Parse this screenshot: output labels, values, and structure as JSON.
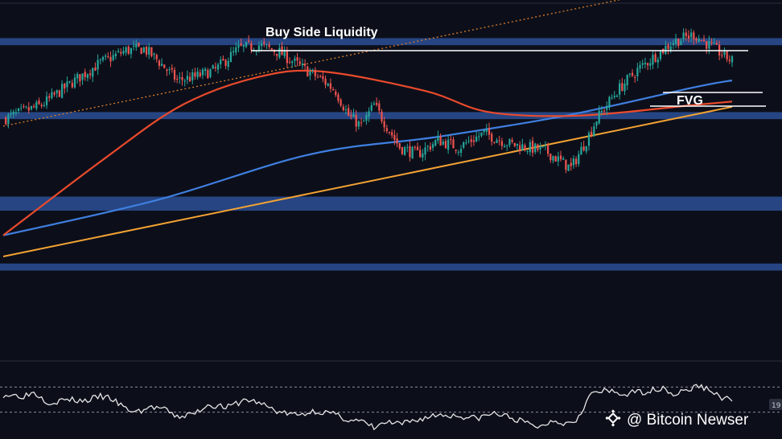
{
  "chart_data": {
    "type": "candlestick",
    "title": "",
    "xlabel": "",
    "ylabel": "",
    "ylim": [
      0,
      1000
    ],
    "grid": false,
    "annotations": {
      "buy_side_liquidity": "Buy Side Liquidity",
      "fvg": "FVG"
    },
    "zones": [
      {
        "name": "top-zone",
        "from": 890,
        "to": 910
      },
      {
        "name": "mid-zone",
        "from": 680,
        "to": 700
      },
      {
        "name": "lower-zone",
        "from": 420,
        "to": 460
      },
      {
        "name": "bottom-zone",
        "from": 250,
        "to": 270
      }
    ],
    "close_path": [
      [
        0,
        680
      ],
      [
        15,
        720
      ],
      [
        28,
        790
      ],
      [
        38,
        840
      ],
      [
        48,
        875
      ],
      [
        55,
        880
      ],
      [
        60,
        850
      ],
      [
        68,
        790
      ],
      [
        75,
        800
      ],
      [
        83,
        820
      ],
      [
        92,
        880
      ],
      [
        100,
        890
      ],
      [
        108,
        870
      ],
      [
        116,
        830
      ],
      [
        125,
        790
      ],
      [
        130,
        760
      ],
      [
        135,
        690
      ],
      [
        140,
        660
      ],
      [
        145,
        720
      ],
      [
        150,
        660
      ],
      [
        155,
        600
      ],
      [
        162,
        580
      ],
      [
        170,
        620
      ],
      [
        178,
        600
      ],
      [
        188,
        640
      ],
      [
        198,
        610
      ],
      [
        205,
        600
      ],
      [
        212,
        590
      ],
      [
        218,
        560
      ],
      [
        222,
        540
      ],
      [
        228,
        620
      ],
      [
        232,
        680
      ],
      [
        240,
        760
      ],
      [
        248,
        820
      ],
      [
        255,
        860
      ],
      [
        262,
        900
      ],
      [
        270,
        920
      ],
      [
        278,
        880
      ],
      [
        285,
        845
      ]
    ],
    "red_ma": [
      [
        0,
        350
      ],
      [
        40,
        570
      ],
      [
        70,
        720
      ],
      [
        100,
        800
      ],
      [
        125,
        815
      ],
      [
        165,
        760
      ],
      [
        190,
        700
      ],
      [
        225,
        690
      ],
      [
        270,
        720
      ],
      [
        285,
        730
      ]
    ],
    "blue_ma": [
      [
        0,
        350
      ],
      [
        60,
        450
      ],
      [
        120,
        580
      ],
      [
        170,
        630
      ],
      [
        220,
        690
      ],
      [
        270,
        770
      ],
      [
        285,
        790
      ]
    ],
    "trendline": [
      [
        0,
        290
      ],
      [
        285,
        715
      ]
    ],
    "upper_channel": [
      [
        0,
        660
      ],
      [
        245,
        1025
      ]
    ],
    "rsi": {
      "series": [
        [
          0,
          58
        ],
        [
          8,
          56
        ],
        [
          12,
          62
        ],
        [
          18,
          45
        ],
        [
          25,
          50
        ],
        [
          32,
          48
        ],
        [
          38,
          55
        ],
        [
          42,
          52
        ],
        [
          48,
          35
        ],
        [
          52,
          30
        ],
        [
          58,
          38
        ],
        [
          62,
          36
        ],
        [
          68,
          22
        ],
        [
          75,
          28
        ],
        [
          80,
          42
        ],
        [
          88,
          38
        ],
        [
          95,
          50
        ],
        [
          100,
          45
        ],
        [
          108,
          30
        ],
        [
          115,
          25
        ],
        [
          122,
          32
        ],
        [
          128,
          28
        ],
        [
          135,
          18
        ],
        [
          140,
          15
        ],
        [
          145,
          5
        ],
        [
          150,
          14
        ],
        [
          155,
          10
        ],
        [
          162,
          18
        ],
        [
          170,
          26
        ],
        [
          178,
          24
        ],
        [
          185,
          20
        ],
        [
          192,
          28
        ],
        [
          198,
          22
        ],
        [
          205,
          12
        ],
        [
          210,
          6
        ],
        [
          215,
          18
        ],
        [
          220,
          12
        ],
        [
          224,
          18
        ],
        [
          230,
          60
        ],
        [
          236,
          64
        ],
        [
          242,
          58
        ],
        [
          248,
          62
        ],
        [
          253,
          64
        ],
        [
          258,
          70
        ],
        [
          262,
          58
        ],
        [
          268,
          66
        ],
        [
          272,
          72
        ],
        [
          276,
          66
        ],
        [
          280,
          55
        ],
        [
          285,
          48
        ]
      ],
      "levels": [
        70,
        30
      ],
      "tag": "19"
    }
  },
  "watermark": {
    "text": "@ Bitcoin Newser",
    "icon": "binance-diamond-icon"
  },
  "colors": {
    "background": "#0c0f1a",
    "zone": "#2c4f95",
    "candle_up": "#26a69a",
    "candle_down": "#ef5350",
    "red_ma": "#ea4a2c",
    "blue_ma": "#3f7fe0",
    "trendline": "#f4a233",
    "channel": "#e07b2b",
    "liquidity_line": "#ffffff",
    "rsi_line": "#e6e6e6"
  }
}
